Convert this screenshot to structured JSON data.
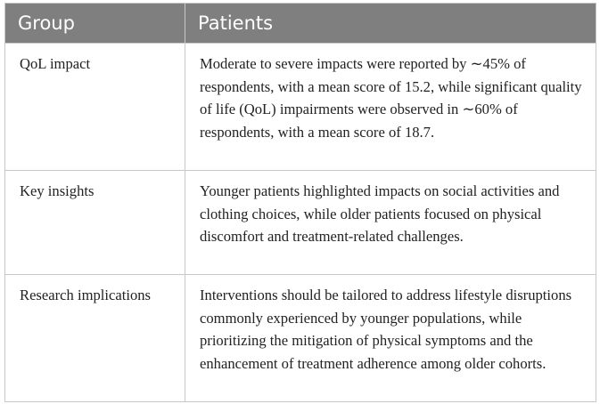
{
  "table": {
    "header": [
      "Group",
      "Patients"
    ],
    "rows": [
      [
        "QoL impact",
        "Moderate to severe impacts were reported by ∼45% of respondents, with a mean score of 15.2, while significant quality of life (QoL) impairments were observed in ∼60% of respondents, with a mean score of 18.7."
      ],
      [
        "Key insights",
        "Younger patients highlighted impacts on social activities and clothing choices, while older patients focused on physical discomfort and treatment-related challenges."
      ],
      [
        "Research implications",
        "Interventions should be tailored to address lifestyle disruptions commonly experienced by younger populations, while prioritizing the mitigation of physical symptoms and the enhancement of treatment adherence among older cohorts."
      ]
    ]
  }
}
